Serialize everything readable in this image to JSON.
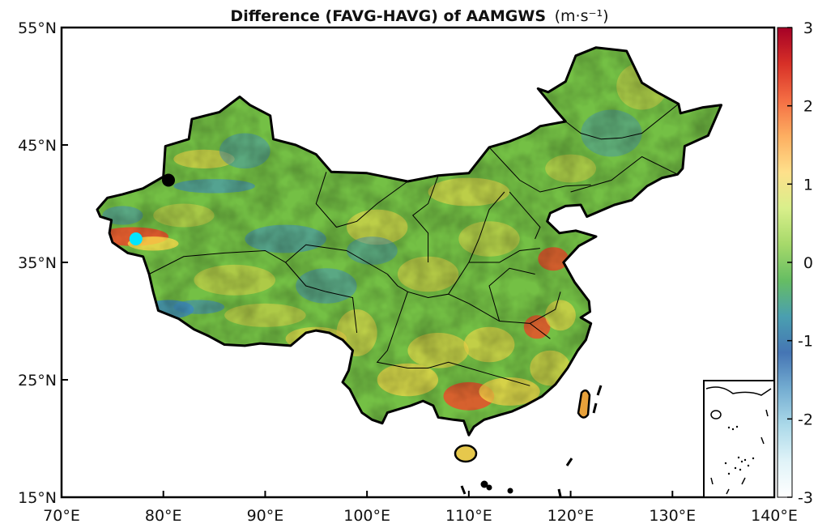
{
  "title": "Difference (FAVG-HAVG) of AAMGWS",
  "title_unit": "(m·s⁻¹)",
  "axes": {
    "x_ticks": [
      "70°E",
      "80°E",
      "90°E",
      "100°E",
      "110°E",
      "120°E",
      "130°E",
      "140°E"
    ],
    "y_ticks": [
      "55°N",
      "45°N",
      "35°N",
      "25°N",
      "15°N"
    ]
  },
  "colorbar": {
    "ticks": [
      "3",
      "2",
      "1",
      "0",
      "-1",
      "-2",
      "-3"
    ],
    "stops": [
      "#a50026",
      "#d73027",
      "#f46d43",
      "#fdae61",
      "#fee08b",
      "#d9ef8b",
      "#a6d96a",
      "#66bd63",
      "#4a9fb0",
      "#4575b4",
      "#74add1",
      "#abd9e9",
      "#e0f3f8",
      "#ffffff"
    ]
  },
  "colors": {
    "land_base": "#74c045",
    "warm": "#f7d84a",
    "hot": "#e8502a",
    "cool": "#3f8fc4",
    "marker_black": "#000000",
    "marker_cyan": "#00e5ff"
  },
  "markers": [
    {
      "name": "black-station",
      "lon": 80.5,
      "lat": 42.0
    },
    {
      "name": "cyan-station",
      "lon": 77.3,
      "lat": 37.0
    }
  ]
}
